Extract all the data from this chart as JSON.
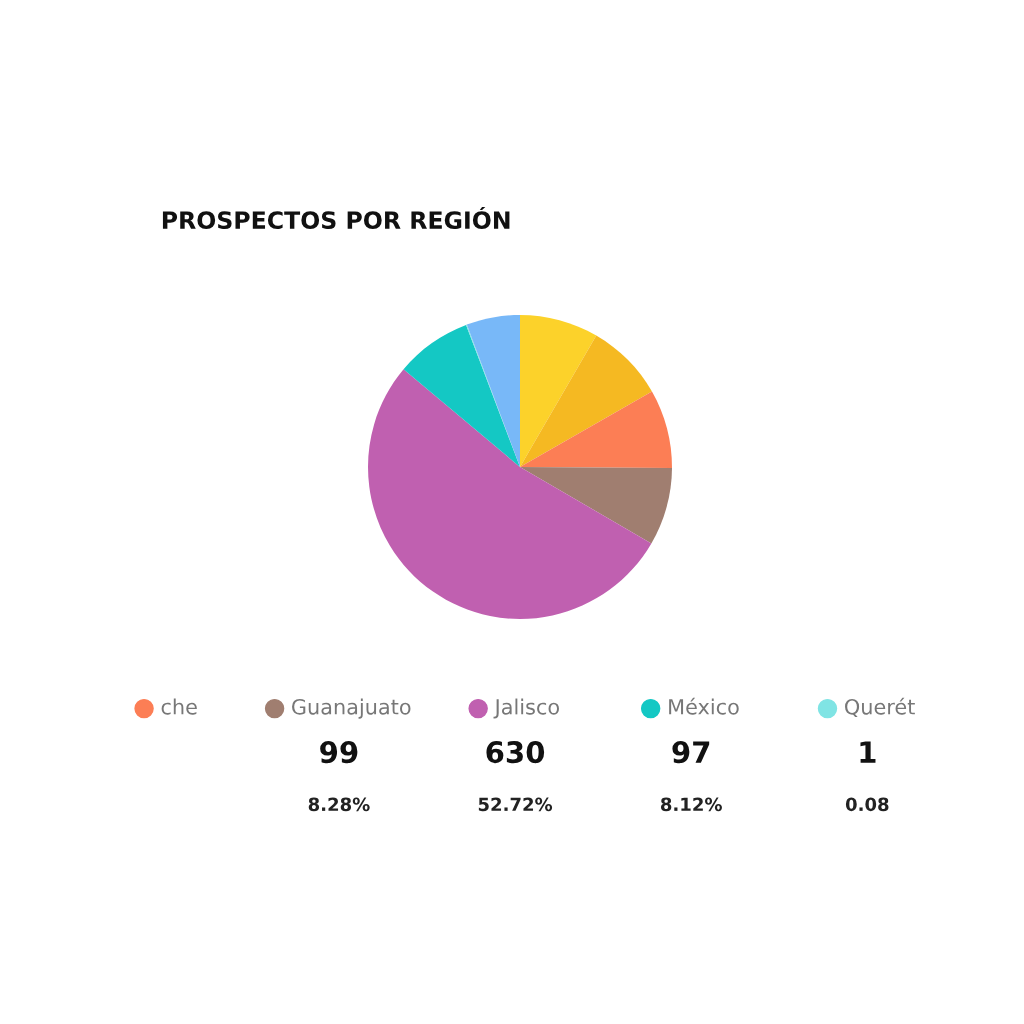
{
  "chart_data": {
    "type": "pie",
    "title": "PROSPECTOS POR REGIÓN",
    "legend": "bottom",
    "categories": [
      null,
      null,
      "che",
      "Guanajuato",
      "Jalisco",
      "México",
      "Querét",
      null
    ],
    "values": [
      100,
      100,
      100,
      99,
      630,
      97,
      1,
      68
    ],
    "colors": [
      "#fcd22a",
      "#f5b922",
      "#fc7e55",
      "#a07e70",
      "#c060b0",
      "#14c8c4",
      "#80e4e4",
      "#78b8f8"
    ],
    "value_labels": [
      null,
      null,
      null,
      "99\n8.28%",
      "630\n52.72%",
      "97\n8.12%",
      "1\n0.08",
      null
    ]
  }
}
